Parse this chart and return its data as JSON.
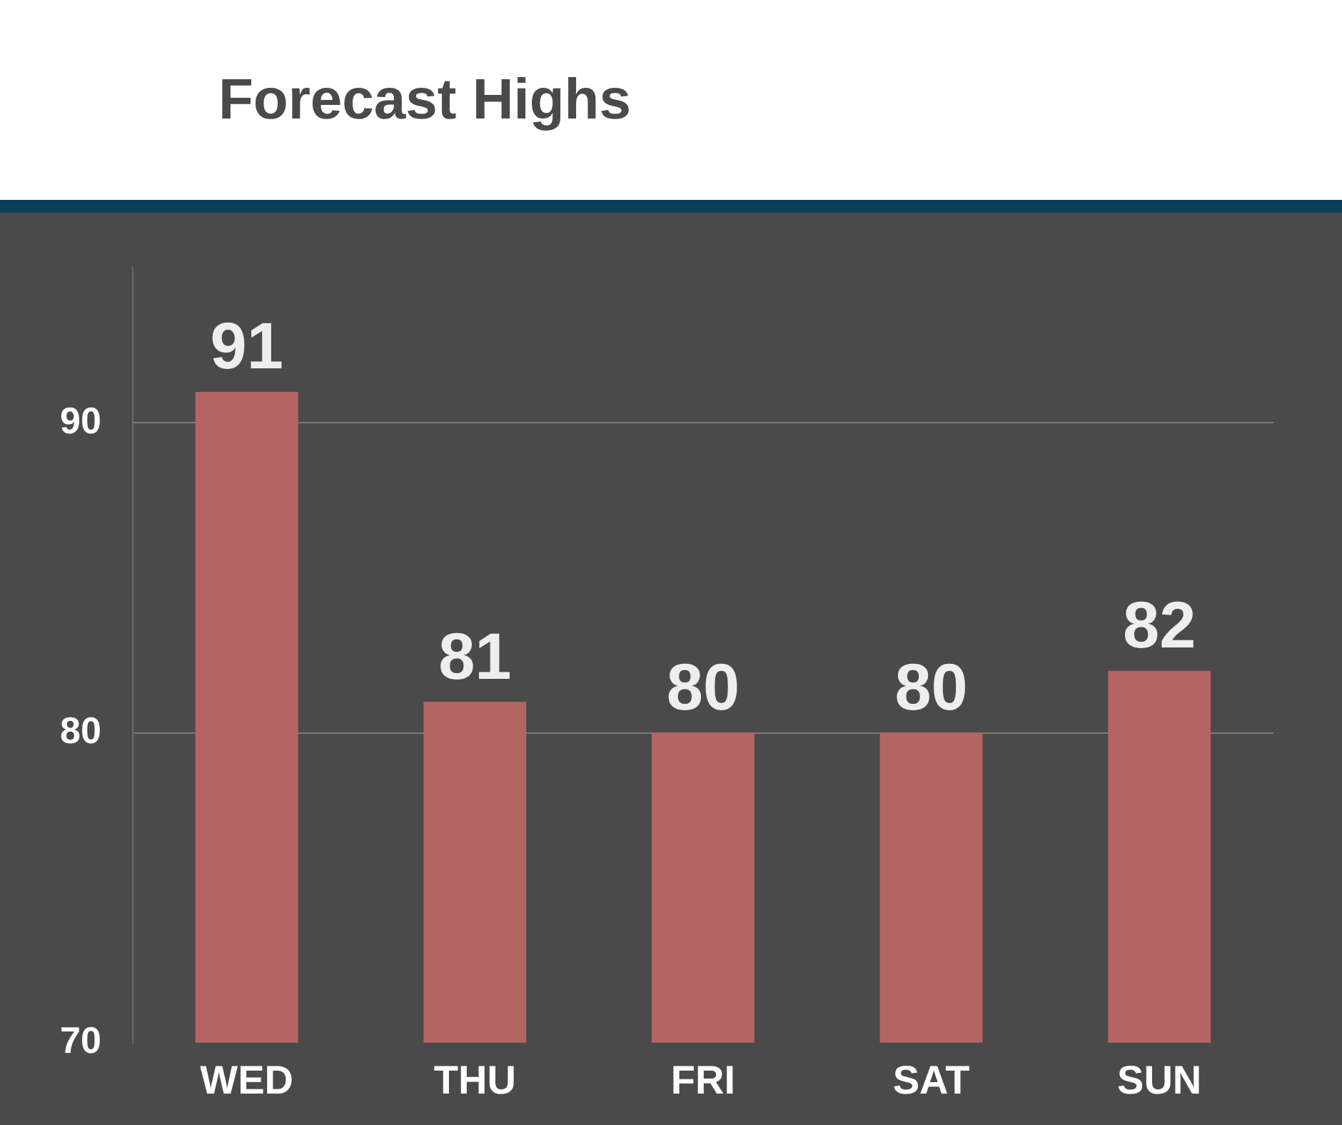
{
  "chart_data": {
    "type": "bar",
    "title": "Forecast Highs",
    "categories": [
      "WED",
      "THU",
      "FRI",
      "SAT",
      "SUN"
    ],
    "values": [
      91,
      81,
      80,
      80,
      82
    ],
    "color": "#b56464",
    "ylim": [
      70,
      95
    ],
    "yticks": [
      70,
      80,
      90
    ],
    "grid": "y",
    "data_labels": true,
    "legend": false
  }
}
